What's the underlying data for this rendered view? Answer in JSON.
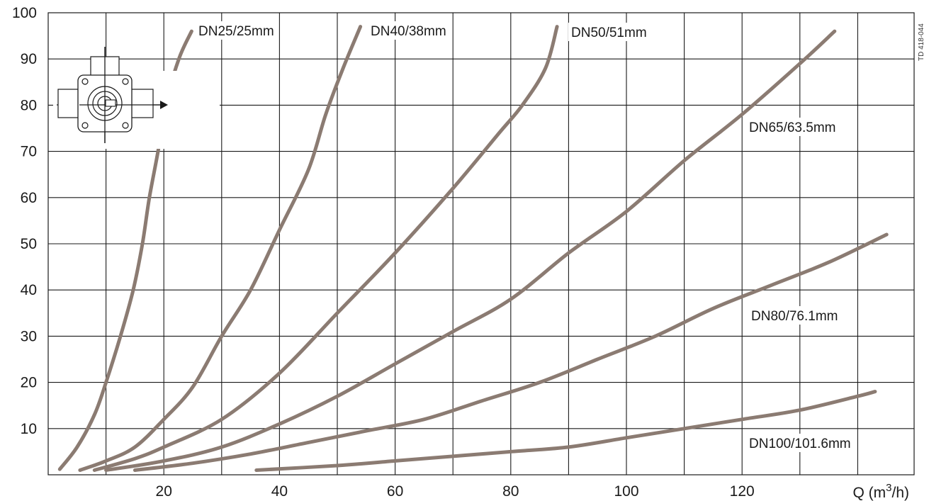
{
  "chart_data": {
    "type": "line",
    "title": "",
    "xlabel": "Q (m³/h)",
    "xlabel_parts": {
      "prefix": "Q (m",
      "sup": "3",
      "suffix": "/h)"
    },
    "ylabel": "",
    "xlim": [
      0,
      150
    ],
    "ylim": [
      0,
      100
    ],
    "x_ticks": [
      20,
      40,
      60,
      80,
      100,
      120
    ],
    "x_tick_labels": [
      "20",
      "40",
      "60",
      "80",
      "100",
      "120"
    ],
    "x_grid_step": 10,
    "y_ticks": [
      10,
      20,
      30,
      40,
      50,
      60,
      70,
      80,
      90,
      100
    ],
    "y_tick_labels": [
      "10",
      "20",
      "30",
      "40",
      "50",
      "60",
      "70",
      "80",
      "90",
      "100"
    ],
    "grid": true,
    "legend": "none",
    "series_color": "#8b7b72",
    "side_note": "TD 418-044",
    "inset_icon": "valve-flow-direction-icon",
    "series": [
      {
        "name": "DN25/25mm",
        "points": [
          [
            2,
            1.2
          ],
          [
            5,
            6
          ],
          [
            8,
            13
          ],
          [
            10,
            20
          ],
          [
            12.5,
            30
          ],
          [
            14.7,
            40
          ],
          [
            16.3,
            50
          ],
          [
            17.5,
            60
          ],
          [
            19,
            70
          ],
          [
            20.3,
            80
          ],
          [
            22.6,
            90
          ],
          [
            24.8,
            96
          ]
        ]
      },
      {
        "name": "DN40/38mm",
        "points": [
          [
            5.5,
            1
          ],
          [
            10,
            3
          ],
          [
            15,
            6
          ],
          [
            20,
            12
          ],
          [
            25,
            19
          ],
          [
            30,
            30
          ],
          [
            35,
            40
          ],
          [
            40,
            53
          ],
          [
            45,
            66
          ],
          [
            48,
            78
          ],
          [
            51,
            88
          ],
          [
            54,
            97
          ]
        ]
      },
      {
        "name": "DN50/51mm",
        "points": [
          [
            8,
            1
          ],
          [
            15,
            3.5
          ],
          [
            20,
            6
          ],
          [
            30,
            12
          ],
          [
            40,
            22
          ],
          [
            50,
            35
          ],
          [
            60,
            48
          ],
          [
            70,
            62
          ],
          [
            78,
            74
          ],
          [
            82,
            80
          ],
          [
            86,
            88
          ],
          [
            88,
            97
          ]
        ]
      },
      {
        "name": "DN65/63.5mm",
        "points": [
          [
            10,
            1
          ],
          [
            20,
            3
          ],
          [
            30,
            6
          ],
          [
            40,
            11
          ],
          [
            50,
            17
          ],
          [
            60,
            24
          ],
          [
            70,
            31
          ],
          [
            80,
            38
          ],
          [
            90,
            48
          ],
          [
            100,
            57
          ],
          [
            110,
            68
          ],
          [
            120,
            78
          ],
          [
            130,
            89
          ],
          [
            136,
            96
          ]
        ]
      },
      {
        "name": "DN80/76.1mm",
        "points": [
          [
            15,
            1
          ],
          [
            25,
            2.5
          ],
          [
            35,
            4.5
          ],
          [
            45,
            7
          ],
          [
            55,
            9.5
          ],
          [
            65,
            12
          ],
          [
            75,
            16
          ],
          [
            85,
            20
          ],
          [
            95,
            25
          ],
          [
            105,
            30
          ],
          [
            115,
            36
          ],
          [
            125,
            41
          ],
          [
            135,
            46
          ],
          [
            145,
            52
          ]
        ]
      },
      {
        "name": "DN100/101.6mm",
        "points": [
          [
            36,
            1
          ],
          [
            50,
            2
          ],
          [
            60,
            3
          ],
          [
            70,
            4
          ],
          [
            80,
            5
          ],
          [
            90,
            6
          ],
          [
            100,
            8
          ],
          [
            110,
            10
          ],
          [
            120,
            12
          ],
          [
            130,
            14
          ],
          [
            140,
            17
          ],
          [
            143,
            18
          ]
        ]
      }
    ]
  }
}
